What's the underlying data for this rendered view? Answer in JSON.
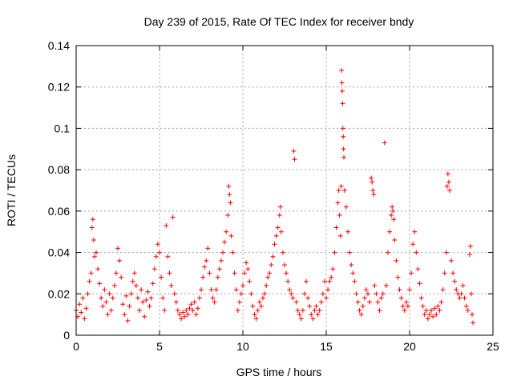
{
  "chart_data": {
    "type": "scatter",
    "title": "Day 239 of 2015, Rate Of TEC Index for receiver bndy",
    "xlabel": "GPS time / hours",
    "ylabel": "ROTI / TECUs",
    "xlim": [
      0,
      25
    ],
    "ylim": [
      0,
      0.14
    ],
    "xticks": [
      0,
      5,
      10,
      15,
      20,
      25
    ],
    "xtick_labels": [
      "0",
      "5",
      "10",
      "15",
      "20",
      "25"
    ],
    "yticks": [
      0,
      0.02,
      0.04,
      0.06,
      0.08,
      0.1,
      0.12,
      0.14
    ],
    "ytick_labels": [
      "0",
      "0.02",
      "0.04",
      "0.06",
      "0.08",
      "0.1",
      "0.12",
      "0.14"
    ],
    "grid": true,
    "marker": "+",
    "color": "#ff0000",
    "series": [
      {
        "name": "ROTI",
        "points": [
          [
            0.0,
            0.012
          ],
          [
            0.1,
            0.009
          ],
          [
            0.2,
            0.015
          ],
          [
            0.3,
            0.011
          ],
          [
            0.4,
            0.018
          ],
          [
            0.5,
            0.008
          ],
          [
            0.6,
            0.013
          ],
          [
            0.7,
            0.02
          ],
          [
            0.8,
            0.026
          ],
          [
            0.9,
            0.03
          ],
          [
            0.95,
            0.052
          ],
          [
            1.0,
            0.056
          ],
          [
            1.05,
            0.046
          ],
          [
            1.1,
            0.038
          ],
          [
            1.2,
            0.04
          ],
          [
            1.3,
            0.032
          ],
          [
            1.4,
            0.025
          ],
          [
            1.5,
            0.018
          ],
          [
            1.6,
            0.014
          ],
          [
            1.7,
            0.022
          ],
          [
            1.8,
            0.016
          ],
          [
            1.9,
            0.01
          ],
          [
            2.0,
            0.02
          ],
          [
            2.1,
            0.012
          ],
          [
            2.2,
            0.018
          ],
          [
            2.3,
            0.024
          ],
          [
            2.4,
            0.03
          ],
          [
            2.5,
            0.042
          ],
          [
            2.6,
            0.036
          ],
          [
            2.7,
            0.028
          ],
          [
            2.8,
            0.015
          ],
          [
            2.9,
            0.01
          ],
          [
            3.0,
            0.019
          ],
          [
            3.1,
            0.007
          ],
          [
            3.2,
            0.014
          ],
          [
            3.3,
            0.02
          ],
          [
            3.4,
            0.026
          ],
          [
            3.5,
            0.03
          ],
          [
            3.6,
            0.024
          ],
          [
            3.7,
            0.018
          ],
          [
            3.8,
            0.012
          ],
          [
            3.9,
            0.022
          ],
          [
            4.0,
            0.016
          ],
          [
            4.1,
            0.009
          ],
          [
            4.2,
            0.017
          ],
          [
            4.3,
            0.021
          ],
          [
            4.4,
            0.014
          ],
          [
            4.5,
            0.018
          ],
          [
            4.6,
            0.025
          ],
          [
            4.7,
            0.032
          ],
          [
            4.8,
            0.038
          ],
          [
            4.9,
            0.044
          ],
          [
            5.0,
            0.04
          ],
          [
            5.1,
            0.028
          ],
          [
            5.2,
            0.018
          ],
          [
            5.3,
            0.012
          ],
          [
            5.4,
            0.053
          ],
          [
            5.5,
            0.038
          ],
          [
            5.6,
            0.03
          ],
          [
            5.7,
            0.024
          ],
          [
            5.8,
            0.057
          ],
          [
            5.9,
            0.02
          ],
          [
            6.0,
            0.016
          ],
          [
            6.1,
            0.012
          ],
          [
            6.2,
            0.01
          ],
          [
            6.3,
            0.008
          ],
          [
            6.4,
            0.011
          ],
          [
            6.5,
            0.009
          ],
          [
            6.6,
            0.012
          ],
          [
            6.7,
            0.01
          ],
          [
            6.8,
            0.013
          ],
          [
            6.9,
            0.015
          ],
          [
            7.0,
            0.012
          ],
          [
            7.1,
            0.016
          ],
          [
            7.2,
            0.01
          ],
          [
            7.3,
            0.013
          ],
          [
            7.4,
            0.018
          ],
          [
            7.5,
            0.022
          ],
          [
            7.6,
            0.028
          ],
          [
            7.7,
            0.033
          ],
          [
            7.8,
            0.036
          ],
          [
            7.9,
            0.042
          ],
          [
            8.0,
            0.03
          ],
          [
            8.1,
            0.022
          ],
          [
            8.2,
            0.018
          ],
          [
            8.3,
            0.016
          ],
          [
            8.4,
            0.022
          ],
          [
            8.5,
            0.028
          ],
          [
            8.6,
            0.032
          ],
          [
            8.7,
            0.036
          ],
          [
            8.8,
            0.04
          ],
          [
            8.9,
            0.045
          ],
          [
            9.0,
            0.05
          ],
          [
            9.1,
            0.058
          ],
          [
            9.15,
            0.072
          ],
          [
            9.2,
            0.068
          ],
          [
            9.25,
            0.064
          ],
          [
            9.3,
            0.048
          ],
          [
            9.4,
            0.04
          ],
          [
            9.5,
            0.03
          ],
          [
            9.6,
            0.022
          ],
          [
            9.7,
            0.012
          ],
          [
            9.8,
            0.016
          ],
          [
            9.9,
            0.02
          ],
          [
            10.0,
            0.024
          ],
          [
            10.1,
            0.03
          ],
          [
            10.2,
            0.035
          ],
          [
            10.3,
            0.032
          ],
          [
            10.4,
            0.026
          ],
          [
            10.5,
            0.02
          ],
          [
            10.6,
            0.014
          ],
          [
            10.7,
            0.01
          ],
          [
            10.8,
            0.008
          ],
          [
            10.9,
            0.012
          ],
          [
            11.0,
            0.016
          ],
          [
            11.1,
            0.014
          ],
          [
            11.2,
            0.018
          ],
          [
            11.3,
            0.02
          ],
          [
            11.4,
            0.024
          ],
          [
            11.5,
            0.028
          ],
          [
            11.6,
            0.03
          ],
          [
            11.7,
            0.034
          ],
          [
            11.8,
            0.038
          ],
          [
            11.9,
            0.044
          ],
          [
            12.0,
            0.048
          ],
          [
            12.1,
            0.052
          ],
          [
            12.2,
            0.058
          ],
          [
            12.25,
            0.062
          ],
          [
            12.3,
            0.05
          ],
          [
            12.4,
            0.04
          ],
          [
            12.5,
            0.034
          ],
          [
            12.6,
            0.03
          ],
          [
            12.7,
            0.026
          ],
          [
            12.8,
            0.022
          ],
          [
            12.9,
            0.02
          ],
          [
            13.0,
            0.018
          ],
          [
            13.05,
            0.089
          ],
          [
            13.1,
            0.085
          ],
          [
            13.2,
            0.016
          ],
          [
            13.3,
            0.012
          ],
          [
            13.4,
            0.01
          ],
          [
            13.5,
            0.008
          ],
          [
            13.6,
            0.012
          ],
          [
            13.7,
            0.02
          ],
          [
            13.8,
            0.026
          ],
          [
            13.9,
            0.018
          ],
          [
            14.0,
            0.014
          ],
          [
            14.1,
            0.01
          ],
          [
            14.2,
            0.008
          ],
          [
            14.3,
            0.012
          ],
          [
            14.4,
            0.014
          ],
          [
            14.5,
            0.01
          ],
          [
            14.6,
            0.012
          ],
          [
            14.7,
            0.016
          ],
          [
            14.8,
            0.02
          ],
          [
            14.9,
            0.026
          ],
          [
            15.0,
            0.018
          ],
          [
            15.1,
            0.022
          ],
          [
            15.2,
            0.026
          ],
          [
            15.3,
            0.028
          ],
          [
            15.4,
            0.032
          ],
          [
            15.5,
            0.04
          ],
          [
            15.6,
            0.052
          ],
          [
            15.7,
            0.064
          ],
          [
            15.75,
            0.07
          ],
          [
            15.8,
            0.058
          ],
          [
            15.85,
            0.048
          ],
          [
            15.9,
            0.072
          ],
          [
            15.92,
            0.128
          ],
          [
            15.94,
            0.122
          ],
          [
            15.96,
            0.118
          ],
          [
            15.98,
            0.112
          ],
          [
            16.0,
            0.1
          ],
          [
            16.02,
            0.096
          ],
          [
            16.04,
            0.09
          ],
          [
            16.06,
            0.086
          ],
          [
            16.1,
            0.07
          ],
          [
            16.2,
            0.062
          ],
          [
            16.3,
            0.05
          ],
          [
            16.4,
            0.04
          ],
          [
            16.5,
            0.034
          ],
          [
            16.6,
            0.03
          ],
          [
            16.7,
            0.026
          ],
          [
            16.8,
            0.02
          ],
          [
            16.9,
            0.016
          ],
          [
            17.0,
            0.012
          ],
          [
            17.1,
            0.01
          ],
          [
            17.2,
            0.014
          ],
          [
            17.3,
            0.018
          ],
          [
            17.4,
            0.022
          ],
          [
            17.5,
            0.02
          ],
          [
            17.6,
            0.016
          ],
          [
            17.7,
            0.076
          ],
          [
            17.75,
            0.074
          ],
          [
            17.8,
            0.07
          ],
          [
            17.85,
            0.068
          ],
          [
            17.9,
            0.024
          ],
          [
            18.0,
            0.02
          ],
          [
            18.1,
            0.016
          ],
          [
            18.2,
            0.012
          ],
          [
            18.3,
            0.018
          ],
          [
            18.4,
            0.02
          ],
          [
            18.5,
            0.093
          ],
          [
            18.6,
            0.024
          ],
          [
            18.7,
            0.04
          ],
          [
            18.8,
            0.05
          ],
          [
            18.9,
            0.058
          ],
          [
            18.95,
            0.062
          ],
          [
            19.0,
            0.06
          ],
          [
            19.05,
            0.056
          ],
          [
            19.1,
            0.046
          ],
          [
            19.2,
            0.036
          ],
          [
            19.3,
            0.028
          ],
          [
            19.4,
            0.022
          ],
          [
            19.5,
            0.018
          ],
          [
            19.6,
            0.014
          ],
          [
            19.7,
            0.012
          ],
          [
            19.8,
            0.016
          ],
          [
            19.9,
            0.014
          ],
          [
            20.0,
            0.022
          ],
          [
            20.1,
            0.03
          ],
          [
            20.2,
            0.044
          ],
          [
            20.3,
            0.05
          ],
          [
            20.4,
            0.04
          ],
          [
            20.5,
            0.032
          ],
          [
            20.6,
            0.025
          ],
          [
            20.7,
            0.018
          ],
          [
            20.8,
            0.014
          ],
          [
            20.9,
            0.01
          ],
          [
            21.0,
            0.012
          ],
          [
            21.1,
            0.008
          ],
          [
            21.2,
            0.01
          ],
          [
            21.3,
            0.012
          ],
          [
            21.4,
            0.009
          ],
          [
            21.5,
            0.013
          ],
          [
            21.6,
            0.01
          ],
          [
            21.7,
            0.014
          ],
          [
            21.8,
            0.012
          ],
          [
            21.9,
            0.016
          ],
          [
            22.0,
            0.022
          ],
          [
            22.1,
            0.03
          ],
          [
            22.2,
            0.04
          ],
          [
            22.25,
            0.072
          ],
          [
            22.3,
            0.078
          ],
          [
            22.35,
            0.074
          ],
          [
            22.4,
            0.07
          ],
          [
            22.5,
            0.036
          ],
          [
            22.6,
            0.03
          ],
          [
            22.7,
            0.026
          ],
          [
            22.8,
            0.022
          ],
          [
            22.9,
            0.02
          ],
          [
            23.0,
            0.018
          ],
          [
            23.1,
            0.02
          ],
          [
            23.2,
            0.024
          ],
          [
            23.3,
            0.018
          ],
          [
            23.4,
            0.014
          ],
          [
            23.5,
            0.012
          ],
          [
            23.6,
            0.039
          ],
          [
            23.65,
            0.043
          ],
          [
            23.7,
            0.02
          ],
          [
            23.75,
            0.01
          ],
          [
            23.8,
            0.006
          ]
        ]
      }
    ]
  }
}
